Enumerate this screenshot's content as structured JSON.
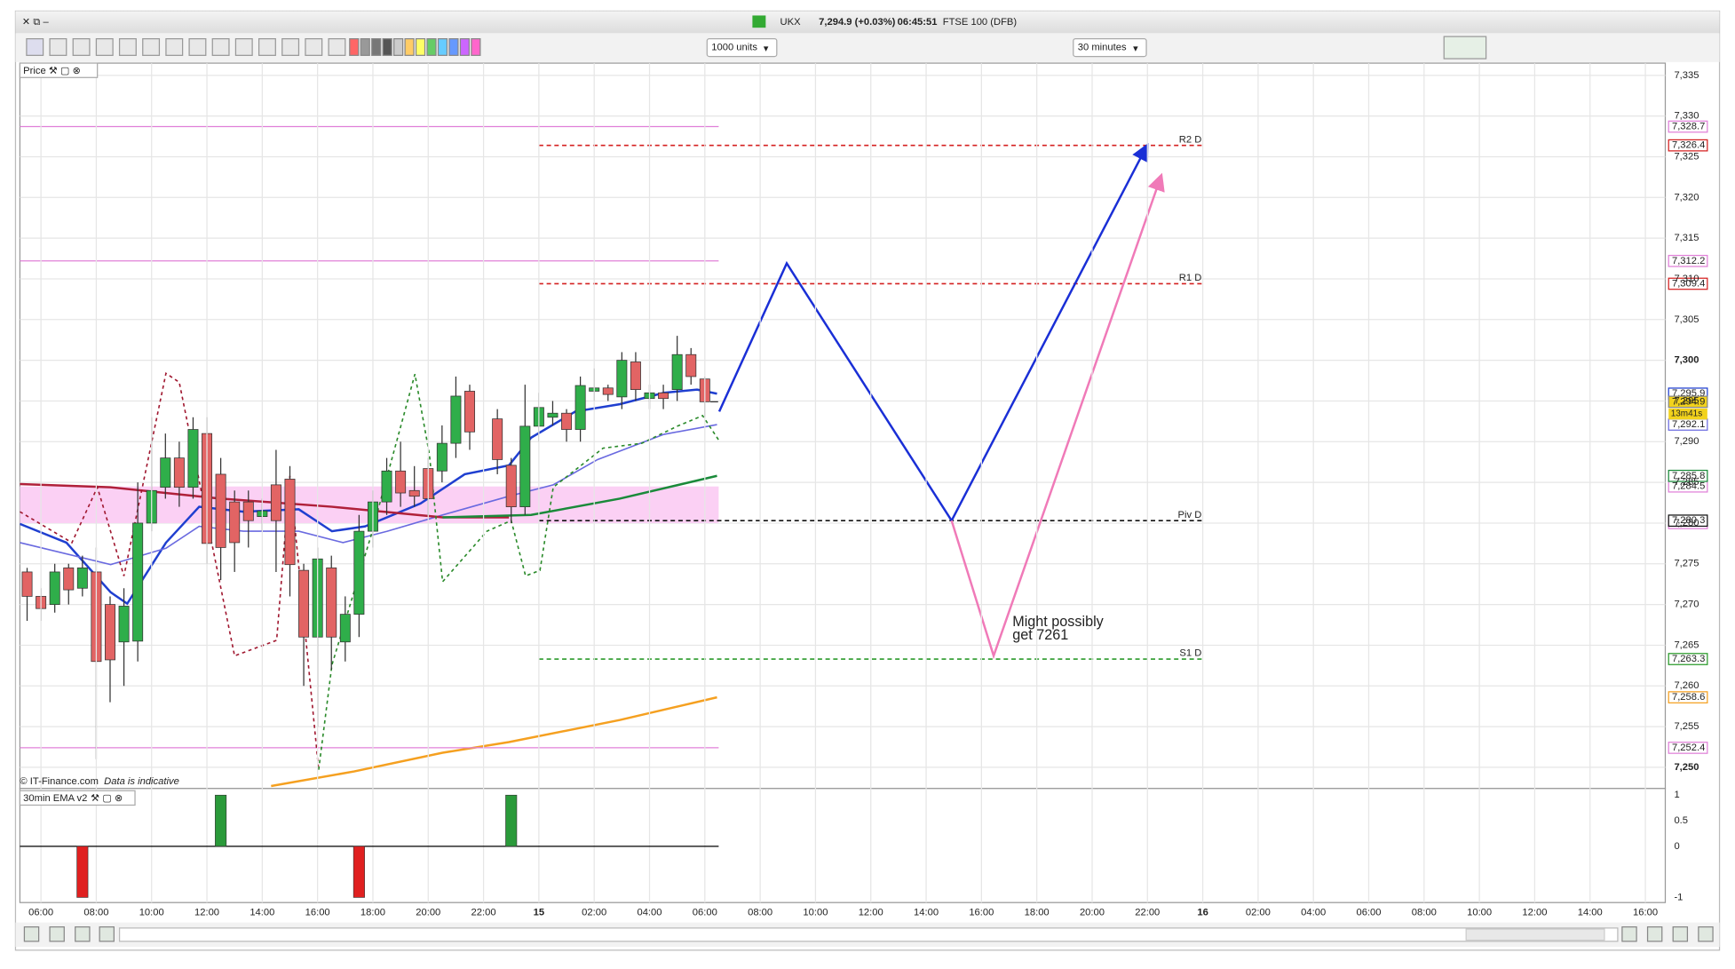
{
  "window": {
    "symbol": "UKX",
    "quote": "7,294.9 (+0.03%)",
    "time": "06:45:51",
    "instrument": "FTSE 100 (DFB)",
    "units": "1000 units",
    "interval": "30 minutes",
    "footer_source": "© IT-Finance.com",
    "footer_note": "Data is indicative"
  },
  "chart_data": [
    {
      "type": "candlestick",
      "title": "Price",
      "x": [
        -0.5,
        0,
        0.5,
        1,
        1.5,
        2,
        2.5,
        3,
        3.5,
        4,
        4.5,
        5,
        5.5,
        6,
        6.5,
        7,
        7.5,
        8,
        8.5,
        9,
        9.5,
        10,
        10.5,
        11,
        11.5,
        12,
        12.5,
        13,
        13.5,
        14,
        14.5,
        15,
        15.5,
        16.5,
        17,
        17.5,
        18,
        18.5,
        19,
        19.5,
        20,
        20.5,
        21,
        21.5,
        22,
        22.5,
        23,
        23.5,
        24
      ],
      "open": [
        7274,
        7271,
        7270,
        7274.5,
        7272,
        7274,
        7270,
        7265.4,
        7265.5,
        7280,
        7284.4,
        7288,
        7284.4,
        7291,
        7286,
        7282.6,
        7282.6,
        7280.8,
        7284.7,
        7285.4,
        7274.2,
        7266,
        7274.5,
        7265.4,
        7268.8,
        7279,
        7282.6,
        7286.4,
        7284,
        7286.7,
        7286.4,
        7289.8,
        7296.2,
        7292.8,
        7287.1,
        7282,
        7291.9,
        7293,
        7293.5,
        7291.5,
        7296.2,
        7296.6,
        7295.5,
        7299.8,
        7295.3,
        7296,
        7296.4,
        7300.7,
        7297.7
      ],
      "high": [
        7274.5,
        7272,
        7275,
        7275,
        7276,
        7277,
        7271,
        7272,
        7285,
        7293,
        7291,
        7290,
        7293,
        7293,
        7288,
        7284,
        7284,
        7283,
        7289,
        7287,
        7275,
        7277,
        7276,
        7271,
        7281,
        7284,
        7288,
        7290,
        7287,
        7288,
        7292,
        7298,
        7297,
        7294,
        7288,
        7297,
        7296,
        7295,
        7294,
        7298,
        7299,
        7297,
        7301,
        7301,
        7297,
        7297,
        7303,
        7301.5,
        7298
      ],
      "low": [
        7268,
        7268,
        7269,
        7270,
        7271,
        7251,
        7258,
        7260,
        7263,
        7279,
        7283,
        7282,
        7283,
        7275,
        7273,
        7274,
        7277,
        7279,
        7274,
        7271,
        7260,
        7255,
        7262,
        7263,
        7266,
        7277,
        7281,
        7282,
        7282,
        7281,
        7285,
        7288,
        7289,
        7286,
        7280,
        7281,
        7290,
        7292,
        7290,
        7290,
        7295,
        7295,
        7294,
        7295,
        7294,
        7294,
        7295,
        7297,
        7293
      ],
      "close": [
        7271,
        7269.5,
        7274,
        7271.8,
        7274.5,
        7263,
        7263.2,
        7269.8,
        7280,
        7284,
        7288,
        7284.4,
        7291.5,
        7277.5,
        7277,
        7277.6,
        7280.3,
        7281.5,
        7280.3,
        7274.9,
        7266,
        7275.6,
        7266,
        7268.8,
        7279,
        7282.6,
        7286.4,
        7283.7,
        7283.3,
        7283,
        7289.8,
        7295.6,
        7291.2,
        7287.8,
        7282,
        7291.9,
        7294.2,
        7293.5,
        7291.5,
        7296.9,
        7296.6,
        7295.8,
        7300,
        7296.4,
        7296,
        7295.3,
        7300.7,
        7298,
        7294.9
      ],
      "up_color": "#2fae4a",
      "down_color": "#e26464",
      "current_price": {
        "label": "7,294.9",
        "countdown": "13m41s",
        "color": "#f2d21c"
      },
      "xlim": [
        -0.76,
        58.72
      ],
      "xticks": [
        {
          "value": 0,
          "label": "06:00"
        },
        {
          "value": 2,
          "label": "08:00"
        },
        {
          "value": 4,
          "label": "10:00"
        },
        {
          "value": 6,
          "label": "12:00"
        },
        {
          "value": 8,
          "label": "14:00"
        },
        {
          "value": 10,
          "label": "16:00"
        },
        {
          "value": 12,
          "label": "18:00"
        },
        {
          "value": 14,
          "label": "20:00"
        },
        {
          "value": 16,
          "label": "22:00"
        },
        {
          "value": 18,
          "label": "15"
        },
        {
          "value": 20,
          "label": "02:00"
        },
        {
          "value": 22,
          "label": "04:00"
        },
        {
          "value": 24,
          "label": "06:00"
        },
        {
          "value": 26,
          "label": "08:00"
        },
        {
          "value": 28,
          "label": "10:00"
        },
        {
          "value": 30,
          "label": "12:00"
        },
        {
          "value": 32,
          "label": "14:00"
        },
        {
          "value": 34,
          "label": "16:00"
        },
        {
          "value": 36,
          "label": "18:00"
        },
        {
          "value": 38,
          "label": "20:00"
        },
        {
          "value": 40,
          "label": "22:00"
        },
        {
          "value": 42,
          "label": "16"
        },
        {
          "value": 44,
          "label": "02:00"
        },
        {
          "value": 46,
          "label": "04:00"
        },
        {
          "value": 48,
          "label": "06:00"
        },
        {
          "value": 50,
          "label": "08:00"
        },
        {
          "value": 52,
          "label": "10:00"
        },
        {
          "value": 54,
          "label": "12:00"
        },
        {
          "value": 56,
          "label": "14:00"
        },
        {
          "value": 58,
          "label": "16:00"
        }
      ],
      "ylim": [
        7247.4,
        7336.5
      ],
      "yticks": [
        {
          "value": 7250,
          "label": "7,250"
        },
        {
          "value": 7255,
          "label": "7,255"
        },
        {
          "value": 7260,
          "label": "7,260"
        },
        {
          "value": 7265,
          "label": "7,265"
        },
        {
          "value": 7270,
          "label": "7,270"
        },
        {
          "value": 7275,
          "label": "7,275"
        },
        {
          "value": 7280,
          "label": "7,280"
        },
        {
          "value": 7285,
          "label": "7,285"
        },
        {
          "value": 7290,
          "label": "7,290"
        },
        {
          "value": 7295,
          "label": "7,295"
        },
        {
          "value": 7300,
          "label": "7,300"
        },
        {
          "value": 7305,
          "label": "7,305"
        },
        {
          "value": 7310,
          "label": "7,310"
        },
        {
          "value": 7315,
          "label": "7,315"
        },
        {
          "value": 7320,
          "label": "7,320"
        },
        {
          "value": 7325,
          "label": "7,325"
        },
        {
          "value": 7330,
          "label": "7,330"
        },
        {
          "value": 7335,
          "label": "7,335"
        }
      ],
      "grid": true,
      "band": {
        "x": [
          -0.76,
          24.5
        ],
        "values": [
          7280.0,
          7284.5
        ],
        "value_labels": [
          "7,280.0",
          "7,284.5"
        ],
        "color": "#fbd0f4",
        "label_color": "#e080d8"
      },
      "lines": [
        {
          "color": "#1f3fd0",
          "width": 2,
          "x": [
            -0.76,
            0.92,
            2.52,
            3.12,
            4.52,
            5.72,
            7.32,
            9.32,
            10.52,
            11.72,
            13.72,
            15.32,
            16.92,
            17.72,
            19.32,
            20.92,
            22.52,
            23.72,
            24.44
          ],
          "values": [
            7279.9,
            7277.6,
            7271.5,
            7270.1,
            7277.6,
            7282,
            7281.4,
            7281.7,
            7279,
            7279.6,
            7282.4,
            7286,
            7287.1,
            7290.5,
            7293.7,
            7294.6,
            7296,
            7296.4,
            7295.9
          ],
          "value_label": "7,295.9"
        },
        {
          "color": "#6a6ae0",
          "width": 1.3,
          "x": [
            -0.76,
            2.52,
            4.52,
            5.72,
            7.32,
            9.32,
            10.92,
            12.52,
            14.52,
            16.92,
            18.52,
            20.12,
            22.52,
            24.44
          ],
          "values": [
            7277.6,
            7274.9,
            7276.9,
            7279.6,
            7279,
            7279,
            7277.6,
            7279,
            7281,
            7283.3,
            7284.7,
            7287.8,
            7290.9,
            7292.1
          ],
          "value_label": "7,292.1"
        },
        {
          "color": "#b0203a",
          "width": 2,
          "x": [
            -0.76,
            2.52,
            6.52,
            10.52,
            14.52,
            16.92
          ],
          "values": [
            7284.8,
            7284.4,
            7283,
            7282,
            7280.7,
            7280.7
          ]
        },
        {
          "color": "#1a8a3a",
          "width": 2,
          "x": [
            14.52,
            17.72,
            20.92,
            24.44
          ],
          "values": [
            7280.7,
            7281,
            7283,
            7285.8
          ],
          "value_label": "7,285.8"
        },
        {
          "color": "#f5a020",
          "width": 2,
          "x": [
            8.32,
            11.32,
            14.52,
            16.92,
            20.92,
            24.44
          ],
          "values": [
            7247.7,
            7249.5,
            7251.8,
            7253.1,
            7255.8,
            7258.6
          ],
          "value_label": "7,258.6"
        },
        {
          "color": "#e080d8",
          "width": 1,
          "x": [
            -0.76,
            24.5
          ],
          "values": [
            7328.7,
            7328.7
          ],
          "value_label": "7,328.7"
        },
        {
          "color": "#e080d8",
          "width": 1,
          "x": [
            -0.76,
            24.5
          ],
          "values": [
            7312.2,
            7312.2
          ],
          "value_label": "7,312.2"
        },
        {
          "color": "#e080d8",
          "width": 1,
          "x": [
            -0.76,
            24.5
          ],
          "values": [
            7252.4,
            7252.4
          ],
          "value_label": "7,252.4"
        },
        {
          "color": "#a01830",
          "width": 1.3,
          "dash": true,
          "x": [
            -0.76,
            1.12,
            2.04,
            3.0,
            4.52,
            5.0,
            7.0,
            8.52,
            9.0,
            10.04
          ],
          "values": [
            7281.4,
            7277.6,
            7284.4,
            7273.5,
            7298.4,
            7297.3,
            7263.7,
            7265.6,
            7285.8,
            7249.7
          ]
        },
        {
          "color": "#2a8a2a",
          "width": 1.3,
          "dash": true,
          "x": [
            10.04,
            10.52,
            11.92,
            13.52,
            14.04,
            14.52,
            16.12,
            17.0,
            17.52,
            18.04,
            18.52,
            20.32,
            21.72,
            23.0,
            23.92,
            24.52
          ],
          "values": [
            7249.7,
            7262.6,
            7278.3,
            7298.3,
            7288.5,
            7272.8,
            7279,
            7280.3,
            7273.5,
            7274.2,
            7284.4,
            7289.2,
            7289.8,
            7291.9,
            7293.2,
            7290.1
          ]
        }
      ],
      "levels": [
        {
          "name": "R2 D",
          "value": 7326.4,
          "value_label": "7,326.4",
          "color": "#d42020",
          "x": [
            18,
            42
          ]
        },
        {
          "name": "R1 D",
          "value": 7309.4,
          "value_label": "7,309.4",
          "color": "#d42020",
          "x": [
            18,
            42
          ]
        },
        {
          "name": "Piv D",
          "value": 7280.3,
          "value_label": "7,280.3",
          "color": "#111111",
          "x": [
            18,
            42
          ]
        },
        {
          "name": "S1 D",
          "value": 7263.3,
          "value_label": "7,263.3",
          "color": "#2a9a2a",
          "x": [
            18,
            42
          ]
        }
      ],
      "drawings": [
        {
          "color": "#1a2fd6",
          "x": [
            24.52,
            26.96,
            32.92,
            39.96
          ],
          "values": [
            7293.7,
            7311.9,
            7280.3,
            7326.2
          ]
        },
        {
          "color": "#f07ab8",
          "x": [
            32.92,
            34.44,
            40.48
          ],
          "values": [
            7280.3,
            7263.7,
            7322.5
          ]
        }
      ],
      "annotation": {
        "lines": [
          "Might possibly",
          "get 7261"
        ],
        "color": "#f07ab8"
      }
    },
    {
      "type": "bar",
      "title": "30min EMA v2",
      "x": [
        1.5,
        6.5,
        11.5,
        17
      ],
      "values": [
        -1,
        1,
        -1,
        1
      ],
      "up_color": "#2a9a3a",
      "down_color": "#e02020",
      "ylim": [
        -1.1,
        1.13
      ],
      "yticks": [
        1,
        0.5,
        0,
        -1
      ]
    }
  ]
}
